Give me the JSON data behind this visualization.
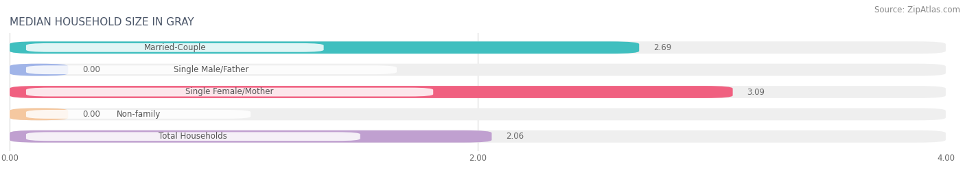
{
  "title": "MEDIAN HOUSEHOLD SIZE IN GRAY",
  "source": "Source: ZipAtlas.com",
  "categories": [
    "Married-Couple",
    "Single Male/Father",
    "Single Female/Mother",
    "Non-family",
    "Total Households"
  ],
  "values": [
    2.69,
    0.0,
    3.09,
    0.0,
    2.06
  ],
  "bar_colors": [
    "#40bfbf",
    "#a0b4e8",
    "#f06080",
    "#f5c8a0",
    "#c0a0d0"
  ],
  "bar_bg_color": "#efefef",
  "label_bg_color": "#ffffff",
  "xlim_max": 4.0,
  "xtick_labels": [
    "0.00",
    "2.00",
    "4.00"
  ],
  "xtick_vals": [
    0.0,
    2.0,
    4.0
  ],
  "title_fontsize": 11,
  "source_fontsize": 8.5,
  "label_fontsize": 8.5,
  "value_fontsize": 8.5,
  "background_color": "#ffffff",
  "bar_height": 0.55,
  "label_color": "#555555",
  "value_color": "#666666",
  "min_bar_width": 0.25
}
